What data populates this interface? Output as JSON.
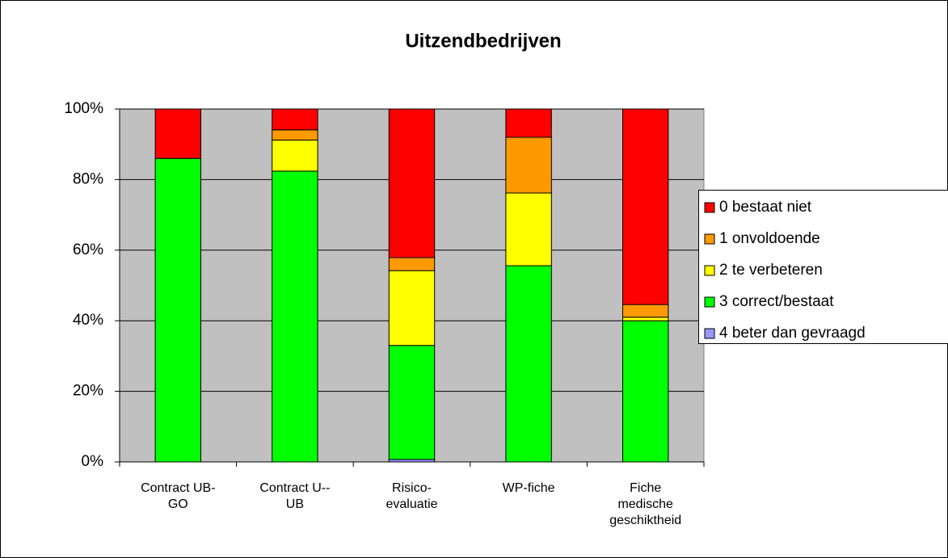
{
  "chart_data": {
    "type": "stacked_bar_100",
    "title": "Uitzendbedrijven",
    "categories": [
      "Contract UB-\nGO",
      "Contract U--\nUB",
      "Risico-\nevaluatie",
      "WP-fiche",
      "Fiche\nmedische\ngeschiktheid"
    ],
    "series": [
      {
        "name": "4 beter dan gevraagd",
        "color": "#9999ff",
        "values": [
          0,
          0,
          0.7,
          0,
          0
        ]
      },
      {
        "name": "3 correct/bestaat",
        "color": "#00ff00",
        "values": [
          86,
          82.4,
          32.3,
          55.6,
          40
        ]
      },
      {
        "name": "2 te verbeteren",
        "color": "#ffff00",
        "values": [
          0,
          8.8,
          21.2,
          20.6,
          1
        ]
      },
      {
        "name": "1 onvoldoende",
        "color": "#ff9900",
        "values": [
          0,
          2.9,
          3.7,
          15.8,
          3.6
        ]
      },
      {
        "name": "0 bestaat niet",
        "color": "#ff0000",
        "values": [
          14,
          5.9,
          42.1,
          8,
          55.4
        ]
      }
    ],
    "ylim": [
      0,
      100
    ],
    "yticks": [
      {
        "value": 0,
        "label": "0%"
      },
      {
        "value": 20,
        "label": "20%"
      },
      {
        "value": 40,
        "label": "40%"
      },
      {
        "value": 60,
        "label": "60%"
      },
      {
        "value": 80,
        "label": "80%"
      },
      {
        "value": 100,
        "label": "100%"
      }
    ],
    "grid": true,
    "legend": "right"
  }
}
